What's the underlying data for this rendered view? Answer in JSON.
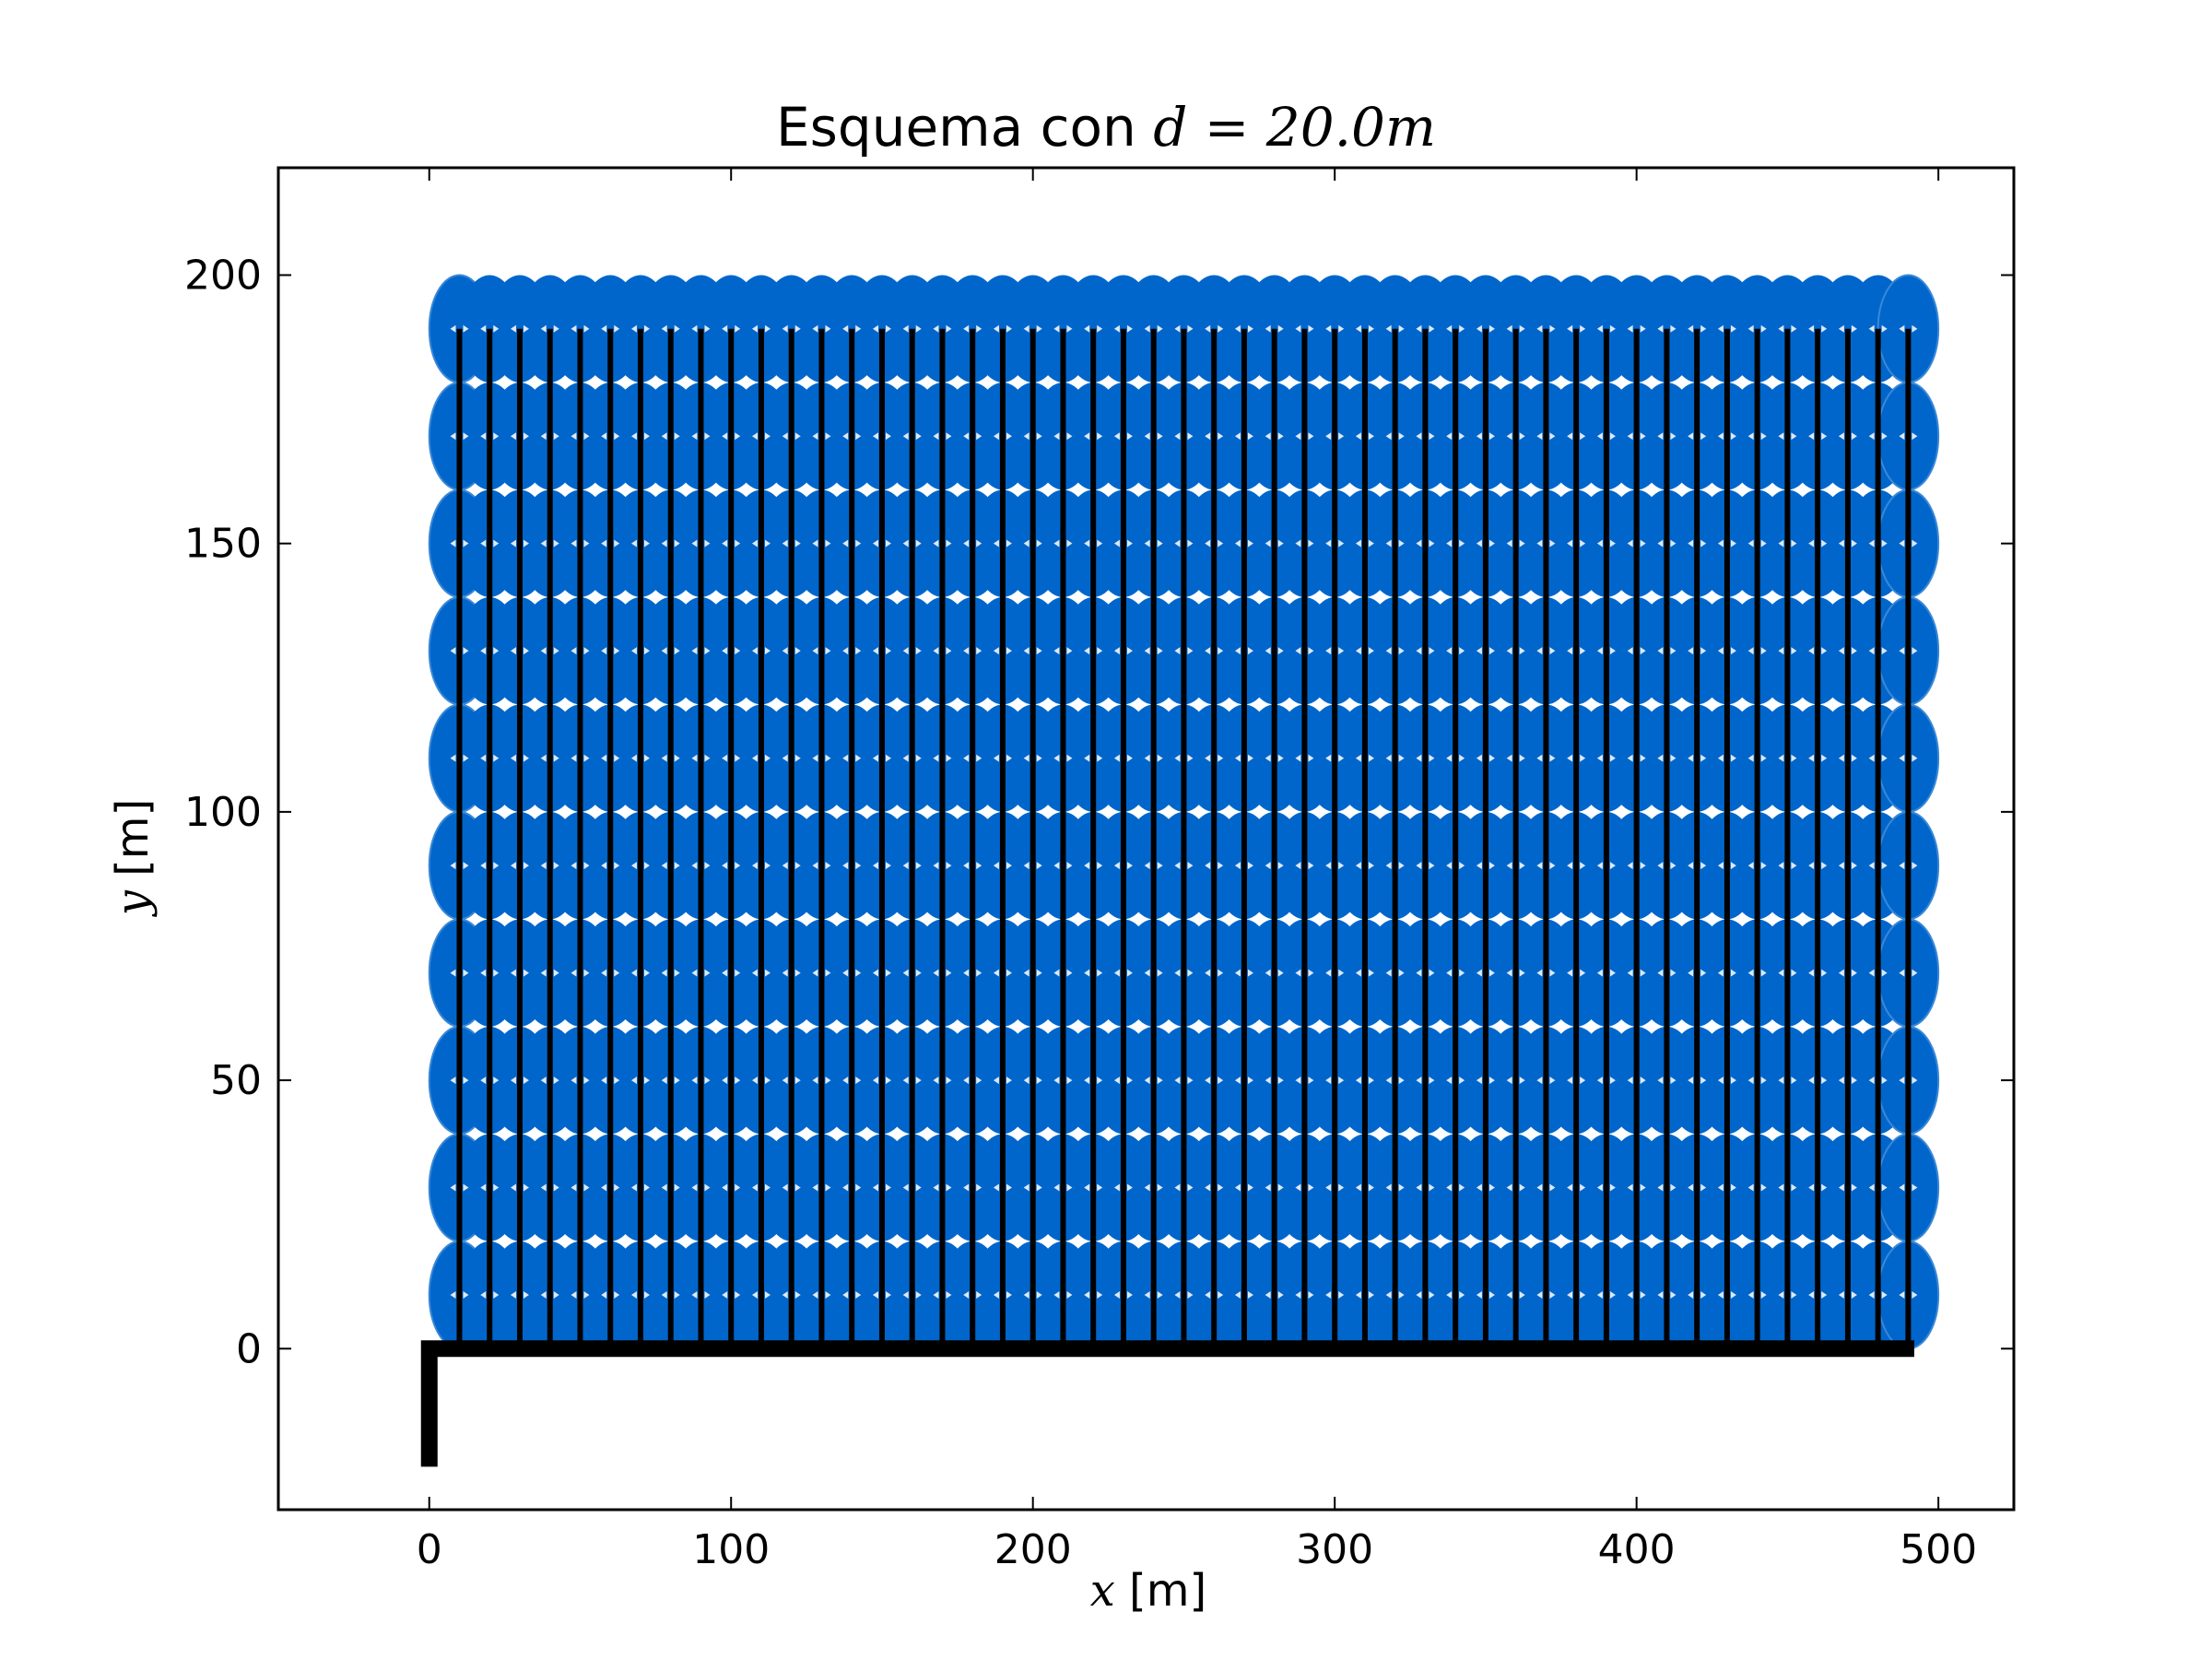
{
  "chart_data": {
    "type": "scatter",
    "title": {
      "prefix": "Esquema con ",
      "math": "d = 20.0m"
    },
    "xlabel": {
      "math": "x",
      "text": " [m]"
    },
    "ylabel": {
      "math": "y",
      "text": " [m]"
    },
    "xlim": [
      -50,
      525
    ],
    "ylim": [
      -30,
      220
    ],
    "xticks": [
      0,
      100,
      200,
      300,
      400,
      500
    ],
    "yticks": [
      0,
      50,
      100,
      150,
      200
    ],
    "grid": false,
    "sprinkler_grid": {
      "x_start": 10,
      "x_step": 10,
      "x_count": 49,
      "y_start": 10,
      "y_step": 20,
      "y_count": 10,
      "radius_x": 10,
      "radius_y": 10
    },
    "laterals": {
      "x_start": 10,
      "x_step": 10,
      "x_count": 49,
      "y_from": 0,
      "y_to": 190
    },
    "main_pipe": {
      "path": [
        [
          0,
          -22
        ],
        [
          0,
          0
        ],
        [
          492,
          0
        ]
      ]
    },
    "colors": {
      "coverage": "#0066cc",
      "coverage_edge": "#3a88d6",
      "pipe": "#000000",
      "emitter": "#dde8f5"
    }
  }
}
